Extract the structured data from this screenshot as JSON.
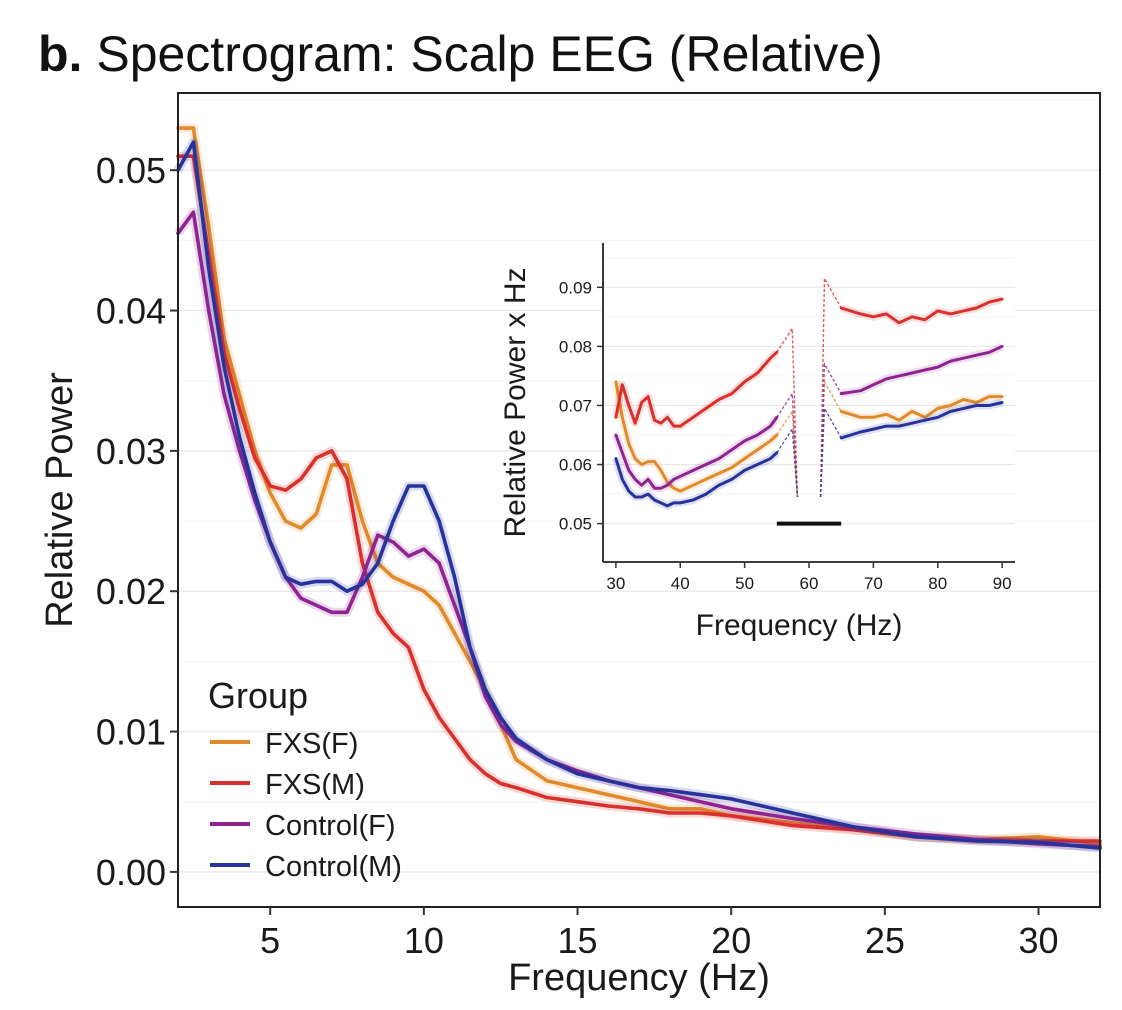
{
  "figure": {
    "panel_letter": "b.",
    "title_text": "Spectrogram: Scalp EEG (Relative)"
  },
  "chart_data": [
    {
      "type": "line",
      "title": "Spectrogram: Scalp EEG (Relative)",
      "xlabel": "Frequency (Hz)",
      "ylabel": "Relative Power",
      "xlim": [
        2,
        32
      ],
      "ylim": [
        -0.0025,
        0.0555
      ],
      "xticks": [
        5,
        10,
        15,
        20,
        25,
        30
      ],
      "xtick_labels": [
        "5",
        "10",
        "15",
        "20",
        "25",
        "30"
      ],
      "yticks": [
        0,
        0.01,
        0.02,
        0.03,
        0.04,
        0.05
      ],
      "ytick_labels": [
        "0.00",
        "0.01",
        "0.02",
        "0.03",
        "0.04",
        "0.05"
      ],
      "grid": true,
      "legend": {
        "title": "Group",
        "position": "bottom-left"
      },
      "series": [
        {
          "name": "FXS(F)",
          "color": "#e08a2c",
          "x": [
            2,
            2.5,
            3,
            3.5,
            4,
            4.5,
            5,
            5.5,
            6,
            6.5,
            7,
            7.5,
            8,
            8.5,
            9,
            9.5,
            10,
            10.5,
            11,
            11.5,
            12,
            12.5,
            13,
            14,
            15,
            16,
            17,
            18,
            19,
            20,
            22,
            24,
            26,
            28,
            30,
            32
          ],
          "y": [
            0.053,
            0.053,
            0.046,
            0.038,
            0.034,
            0.03,
            0.027,
            0.025,
            0.0245,
            0.0255,
            0.029,
            0.029,
            0.025,
            0.022,
            0.021,
            0.0205,
            0.02,
            0.019,
            0.017,
            0.015,
            0.013,
            0.0105,
            0.008,
            0.0065,
            0.006,
            0.0055,
            0.005,
            0.0045,
            0.0045,
            0.004,
            0.0035,
            0.003,
            0.0025,
            0.0023,
            0.0025,
            0.002
          ]
        },
        {
          "name": "FXS(M)",
          "color": "#d8302c",
          "x": [
            2,
            2.5,
            3,
            3.5,
            4,
            4.5,
            5,
            5.5,
            6,
            6.5,
            7,
            7.5,
            8,
            8.5,
            9,
            9.5,
            10,
            10.5,
            11,
            11.5,
            12,
            12.5,
            13,
            14,
            15,
            16,
            17,
            18,
            19,
            20,
            22,
            24,
            26,
            28,
            30,
            32
          ],
          "y": [
            0.051,
            0.051,
            0.044,
            0.037,
            0.033,
            0.0295,
            0.0275,
            0.0272,
            0.028,
            0.0295,
            0.03,
            0.028,
            0.022,
            0.0185,
            0.017,
            0.016,
            0.013,
            0.011,
            0.0095,
            0.008,
            0.007,
            0.0063,
            0.006,
            0.0053,
            0.005,
            0.0047,
            0.0045,
            0.0042,
            0.0042,
            0.004,
            0.0033,
            0.003,
            0.0025,
            0.0023,
            0.0022,
            0.0022
          ]
        },
        {
          "name": "Control(F)",
          "color": "#8e2490",
          "x": [
            2,
            2.5,
            3,
            3.5,
            4,
            4.5,
            5,
            5.5,
            6,
            6.5,
            7,
            7.5,
            8,
            8.5,
            9,
            9.5,
            10,
            10.5,
            11,
            11.5,
            12,
            12.5,
            13,
            14,
            15,
            16,
            17,
            18,
            19,
            20,
            22,
            24,
            26,
            28,
            30,
            32
          ],
          "y": [
            0.0455,
            0.047,
            0.04,
            0.034,
            0.03,
            0.0265,
            0.0235,
            0.021,
            0.0195,
            0.019,
            0.0185,
            0.0185,
            0.021,
            0.024,
            0.0235,
            0.0225,
            0.023,
            0.022,
            0.019,
            0.016,
            0.0125,
            0.0105,
            0.0093,
            0.008,
            0.0072,
            0.0065,
            0.006,
            0.0055,
            0.005,
            0.0045,
            0.0038,
            0.0032,
            0.0027,
            0.0023,
            0.002,
            0.0018
          ]
        },
        {
          "name": "Control(M)",
          "color": "#27339b",
          "x": [
            2,
            2.5,
            3,
            3.5,
            4,
            4.5,
            5,
            5.5,
            6,
            6.5,
            7,
            7.5,
            8,
            8.5,
            9,
            9.5,
            10,
            10.5,
            11,
            11.5,
            12,
            12.5,
            13,
            14,
            15,
            16,
            17,
            18,
            19,
            20,
            22,
            24,
            26,
            28,
            30,
            32
          ],
          "y": [
            0.05,
            0.052,
            0.043,
            0.036,
            0.031,
            0.027,
            0.0235,
            0.021,
            0.0205,
            0.0207,
            0.0207,
            0.02,
            0.0205,
            0.022,
            0.025,
            0.0275,
            0.0275,
            0.025,
            0.021,
            0.016,
            0.013,
            0.011,
            0.0095,
            0.008,
            0.007,
            0.0065,
            0.006,
            0.0058,
            0.0055,
            0.0052,
            0.0042,
            0.0032,
            0.0025,
            0.0022,
            0.0021,
            0.0017
          ]
        }
      ]
    },
    {
      "type": "line",
      "title": "",
      "xlabel": "Frequency (Hz)",
      "ylabel": "Relative Power x Hz",
      "xlim": [
        28,
        92
      ],
      "ylim": [
        0.0435,
        0.0975
      ],
      "xticks": [
        30,
        40,
        50,
        60,
        70,
        80,
        90
      ],
      "xtick_labels": [
        "30",
        "40",
        "50",
        "60",
        "70",
        "80",
        "90"
      ],
      "yticks": [
        0.05,
        0.06,
        0.07,
        0.08,
        0.09
      ],
      "ytick_labels": [
        "0.05",
        "0.06",
        "0.07",
        "0.08",
        "0.09"
      ],
      "grid": true,
      "annotation_bar": {
        "x0": 55,
        "x1": 65,
        "y": 0.05
      },
      "series": [
        {
          "name": "FXS(F)",
          "color": "#e08a2c",
          "segments": [
            {
              "x": [
                30,
                31,
                32,
                33,
                34,
                35,
                36,
                37,
                38,
                39,
                40,
                42,
                44,
                46,
                48,
                50,
                52,
                54,
                55
              ],
              "y": [
                0.074,
                0.068,
                0.0635,
                0.061,
                0.06,
                0.0605,
                0.0605,
                0.059,
                0.057,
                0.056,
                0.0555,
                0.0565,
                0.0575,
                0.0585,
                0.0595,
                0.061,
                0.0625,
                0.064,
                0.065
              ]
            },
            {
              "x": [
                65,
                68,
                70,
                72,
                74,
                76,
                78,
                80,
                82,
                84,
                86,
                88,
                90
              ],
              "y": [
                0.069,
                0.068,
                0.068,
                0.0685,
                0.0675,
                0.069,
                0.068,
                0.0695,
                0.07,
                0.071,
                0.0705,
                0.0715,
                0.0715
              ]
            }
          ]
        },
        {
          "name": "FXS(M)",
          "color": "#d8302c",
          "segments": [
            {
              "x": [
                30,
                31,
                32,
                33,
                34,
                35,
                36,
                37,
                38,
                39,
                40,
                42,
                44,
                46,
                48,
                50,
                52,
                54,
                55
              ],
              "y": [
                0.068,
                0.0735,
                0.07,
                0.067,
                0.0705,
                0.0715,
                0.0675,
                0.067,
                0.068,
                0.0665,
                0.0665,
                0.068,
                0.0695,
                0.071,
                0.072,
                0.074,
                0.0755,
                0.078,
                0.079
              ]
            },
            {
              "x": [
                65,
                68,
                70,
                72,
                74,
                76,
                78,
                80,
                82,
                84,
                86,
                88,
                90
              ],
              "y": [
                0.0865,
                0.0855,
                0.085,
                0.0855,
                0.084,
                0.085,
                0.0845,
                0.086,
                0.0855,
                0.086,
                0.0865,
                0.0875,
                0.088
              ]
            }
          ]
        },
        {
          "name": "Control(F)",
          "color": "#8e2490",
          "segments": [
            {
              "x": [
                30,
                31,
                32,
                33,
                34,
                35,
                36,
                37,
                38,
                39,
                40,
                42,
                44,
                46,
                48,
                50,
                52,
                54,
                55
              ],
              "y": [
                0.065,
                0.062,
                0.059,
                0.0575,
                0.0565,
                0.0575,
                0.056,
                0.056,
                0.0565,
                0.0575,
                0.058,
                0.059,
                0.06,
                0.061,
                0.0625,
                0.064,
                0.065,
                0.0665,
                0.068
              ]
            },
            {
              "x": [
                65,
                68,
                70,
                72,
                74,
                76,
                78,
                80,
                82,
                84,
                86,
                88,
                90
              ],
              "y": [
                0.072,
                0.0725,
                0.0735,
                0.0745,
                0.075,
                0.0755,
                0.076,
                0.0765,
                0.0775,
                0.078,
                0.0785,
                0.079,
                0.08
              ]
            }
          ]
        },
        {
          "name": "Control(M)",
          "color": "#27339b",
          "segments": [
            {
              "x": [
                30,
                31,
                32,
                33,
                34,
                35,
                36,
                37,
                38,
                39,
                40,
                42,
                44,
                46,
                48,
                50,
                52,
                54,
                55
              ],
              "y": [
                0.061,
                0.0575,
                0.0555,
                0.0545,
                0.0545,
                0.055,
                0.054,
                0.0535,
                0.053,
                0.0535,
                0.0535,
                0.054,
                0.055,
                0.0565,
                0.0575,
                0.059,
                0.06,
                0.061,
                0.062
              ]
            },
            {
              "x": [
                65,
                68,
                70,
                72,
                74,
                76,
                78,
                80,
                82,
                84,
                86,
                88,
                90
              ],
              "y": [
                0.0645,
                0.0655,
                0.066,
                0.0665,
                0.0665,
                0.067,
                0.0675,
                0.068,
                0.069,
                0.0695,
                0.07,
                0.07,
                0.0705
              ]
            }
          ]
        }
      ]
    }
  ]
}
